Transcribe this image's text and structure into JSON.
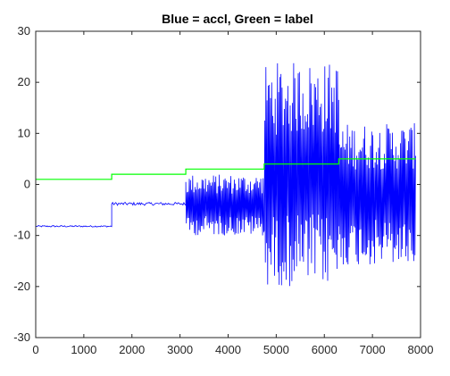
{
  "chart_data": {
    "type": "line",
    "title": "Blue = accl, Green = label",
    "xlabel": "",
    "ylabel": "",
    "xlim": [
      0,
      8000
    ],
    "ylim": [
      -30,
      30
    ],
    "x_ticks": [
      "0",
      "1000",
      "2000",
      "3000",
      "4000",
      "5000",
      "6000",
      "7000",
      "8000"
    ],
    "y_ticks": [
      "30",
      "20",
      "10",
      "0",
      "-10",
      "-20",
      "-30"
    ],
    "grid": false,
    "legend": "none",
    "series": [
      {
        "color": "#0000ff",
        "style": "oscillating signal",
        "segments": [
          {
            "x_start": 0,
            "x_end": 1580,
            "center": -8.2,
            "amplitude": 0.15
          },
          {
            "x_start": 1580,
            "x_end": 3120,
            "center": -3.8,
            "amplitude": 0.3
          },
          {
            "x_start": 3120,
            "x_end": 4750,
            "center": -4.0,
            "amplitude": 6.0
          },
          {
            "x_start": 4750,
            "x_end": 6300,
            "center": 2.0,
            "amplitude": 22.0
          },
          {
            "x_start": 6300,
            "x_end": 7900,
            "center": -2.0,
            "amplitude": 14.0
          }
        ]
      },
      {
        "color": "#00ff00",
        "style": "step",
        "x": [
          0,
          1580,
          1580,
          3120,
          3120,
          4750,
          4750,
          6300,
          6300,
          7900
        ],
        "y": [
          1,
          1,
          2,
          2,
          3,
          3,
          4,
          4,
          5,
          5
        ]
      }
    ]
  }
}
